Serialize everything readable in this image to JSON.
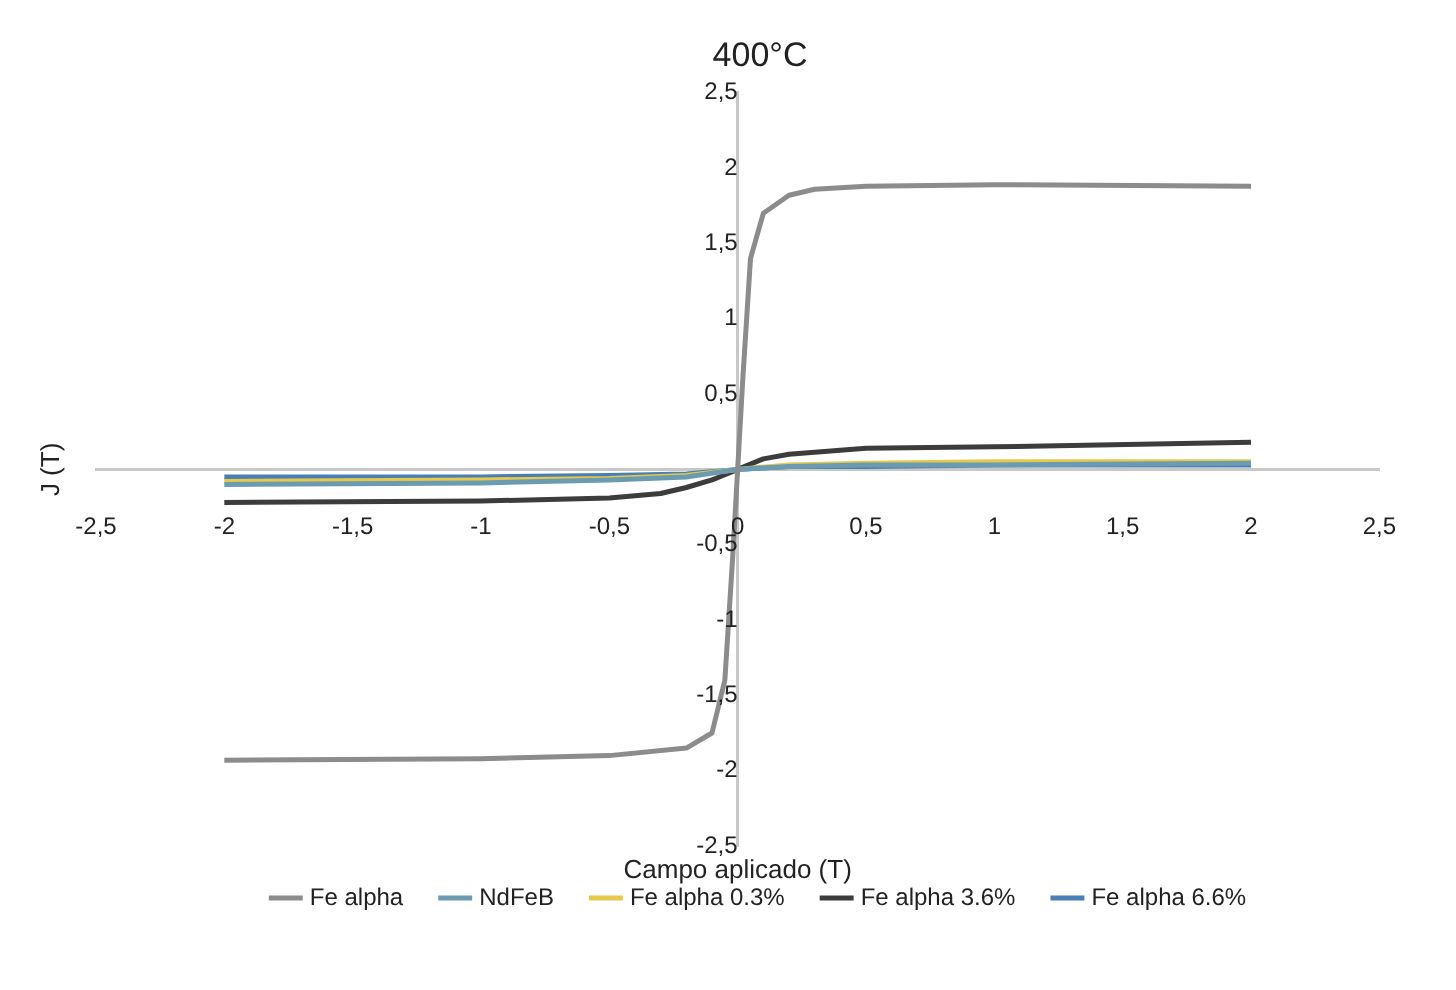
{
  "chart_data": {
    "type": "line",
    "title": "400°C",
    "xlabel": "Campo aplicado (T)",
    "ylabel": "J (T)",
    "xlim": [
      -2.5,
      2.5
    ],
    "ylim": [
      -2.5,
      2.5
    ],
    "xticks": [
      {
        "value": -2.5,
        "label": "-2,5"
      },
      -2,
      {
        "value": -1.5,
        "label": "-1,5"
      },
      -1,
      {
        "value": -0.5,
        "label": "-0,5"
      },
      0,
      {
        "value": 0.5,
        "label": "0,5"
      },
      1,
      {
        "value": 1.5,
        "label": "1,5"
      },
      2,
      {
        "value": 2.5,
        "label": "2,5"
      }
    ],
    "yticks": [
      {
        "value": -2.5,
        "label": "-2,5"
      },
      -2,
      {
        "value": -1.5,
        "label": "-1,5"
      },
      -1,
      {
        "value": -0.5,
        "label": "-0,5"
      },
      {
        "value": 0.5,
        "label": "0,5"
      },
      1,
      {
        "value": 1.5,
        "label": "1,5"
      },
      2,
      {
        "value": 2.5,
        "label": "2,5"
      }
    ],
    "grid": false,
    "legend": "bottom",
    "marker": "none",
    "line_style": "solid",
    "series": [
      {
        "name": "Fe alpha",
        "color": "#8c8c8c",
        "x": [
          -2,
          -1,
          -0.5,
          -0.2,
          -0.1,
          -0.05,
          -0.02,
          0,
          0.02,
          0.05,
          0.1,
          0.2,
          0.3,
          0.5,
          1,
          2
        ],
        "values": [
          -1.93,
          -1.92,
          -1.9,
          -1.85,
          -1.75,
          -1.4,
          -0.6,
          0,
          0.6,
          1.4,
          1.7,
          1.82,
          1.86,
          1.88,
          1.89,
          1.88
        ]
      },
      {
        "name": "NdFeB",
        "color": "#6a9bb0",
        "x": [
          -2,
          -1,
          -0.5,
          -0.2,
          0,
          0.2,
          0.5,
          1,
          2
        ],
        "values": [
          -0.1,
          -0.09,
          -0.07,
          -0.05,
          0,
          0.02,
          0.03,
          0.03,
          0.04
        ]
      },
      {
        "name": "Fe alpha 0.3%",
        "color": "#e6c84a",
        "x": [
          -2,
          -1,
          -0.5,
          -0.2,
          0,
          0.2,
          0.5,
          1,
          2
        ],
        "values": [
          -0.08,
          -0.07,
          -0.06,
          -0.04,
          0,
          0.03,
          0.04,
          0.05,
          0.05
        ]
      },
      {
        "name": "Fe alpha 3.6%",
        "color": "#3c3c3c",
        "x": [
          -2,
          -1,
          -0.5,
          -0.3,
          -0.2,
          -0.1,
          0,
          0.1,
          0.2,
          0.5,
          1,
          2
        ],
        "values": [
          -0.22,
          -0.21,
          -0.19,
          -0.16,
          -0.12,
          -0.07,
          0,
          0.07,
          0.1,
          0.14,
          0.15,
          0.18
        ]
      },
      {
        "name": "Fe alpha 6.6%",
        "color": "#4a7fb5",
        "x": [
          -2,
          -1,
          -0.5,
          -0.2,
          0,
          0.2,
          0.5,
          1,
          2
        ],
        "values": [
          -0.05,
          -0.05,
          -0.04,
          -0.03,
          0,
          0.02,
          0.02,
          0.03,
          0.03
        ]
      }
    ]
  }
}
